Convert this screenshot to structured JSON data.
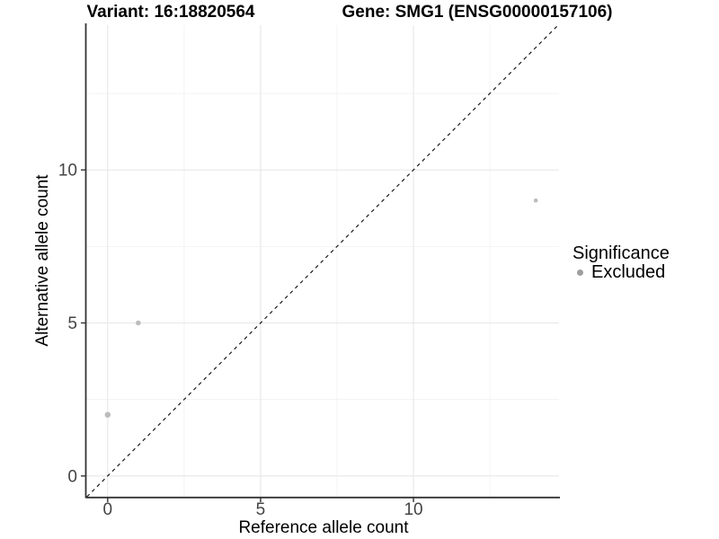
{
  "chart_data": {
    "type": "scatter",
    "title_left": "Variant: 16:18820564",
    "title_right": "Gene: SMG1 (ENSG00000157106)",
    "xlabel": "Reference allele count",
    "ylabel": "Alternative allele count",
    "xlim": [
      -0.7,
      14.76
    ],
    "ylim": [
      -0.68,
      14.73
    ],
    "x_ticks": [
      0,
      5,
      10
    ],
    "y_ticks": [
      0,
      5,
      10
    ],
    "x_minor_ticks": [
      2.5,
      7.5,
      12.5
    ],
    "y_minor_ticks": [
      2.5,
      7.5,
      12.5
    ],
    "grid": "major and minor, light grey on white",
    "points": [
      {
        "x": 0,
        "y": 2,
        "r": 3.2,
        "significance": "Excluded"
      },
      {
        "x": 1,
        "y": 5,
        "r": 2.8,
        "significance": "Excluded"
      },
      {
        "x": 14,
        "y": 9,
        "r": 2.3,
        "significance": "Excluded"
      }
    ],
    "identity_line": {
      "slope": 1,
      "intercept": 0,
      "style": "dashed",
      "color": "#1a1a1a"
    },
    "legend": {
      "position": "right",
      "title": "Significance",
      "items": [
        {
          "label": "Excluded",
          "color": "#9e9e9e"
        }
      ]
    },
    "colors": {
      "point": "#bcbcbc",
      "grid_major": "#e7e7e7",
      "grid_minor": "#f3f3f3",
      "axis_line": "#333333",
      "tick_mark": "#333333",
      "tick_label": "#444444",
      "background": "#ffffff"
    }
  }
}
